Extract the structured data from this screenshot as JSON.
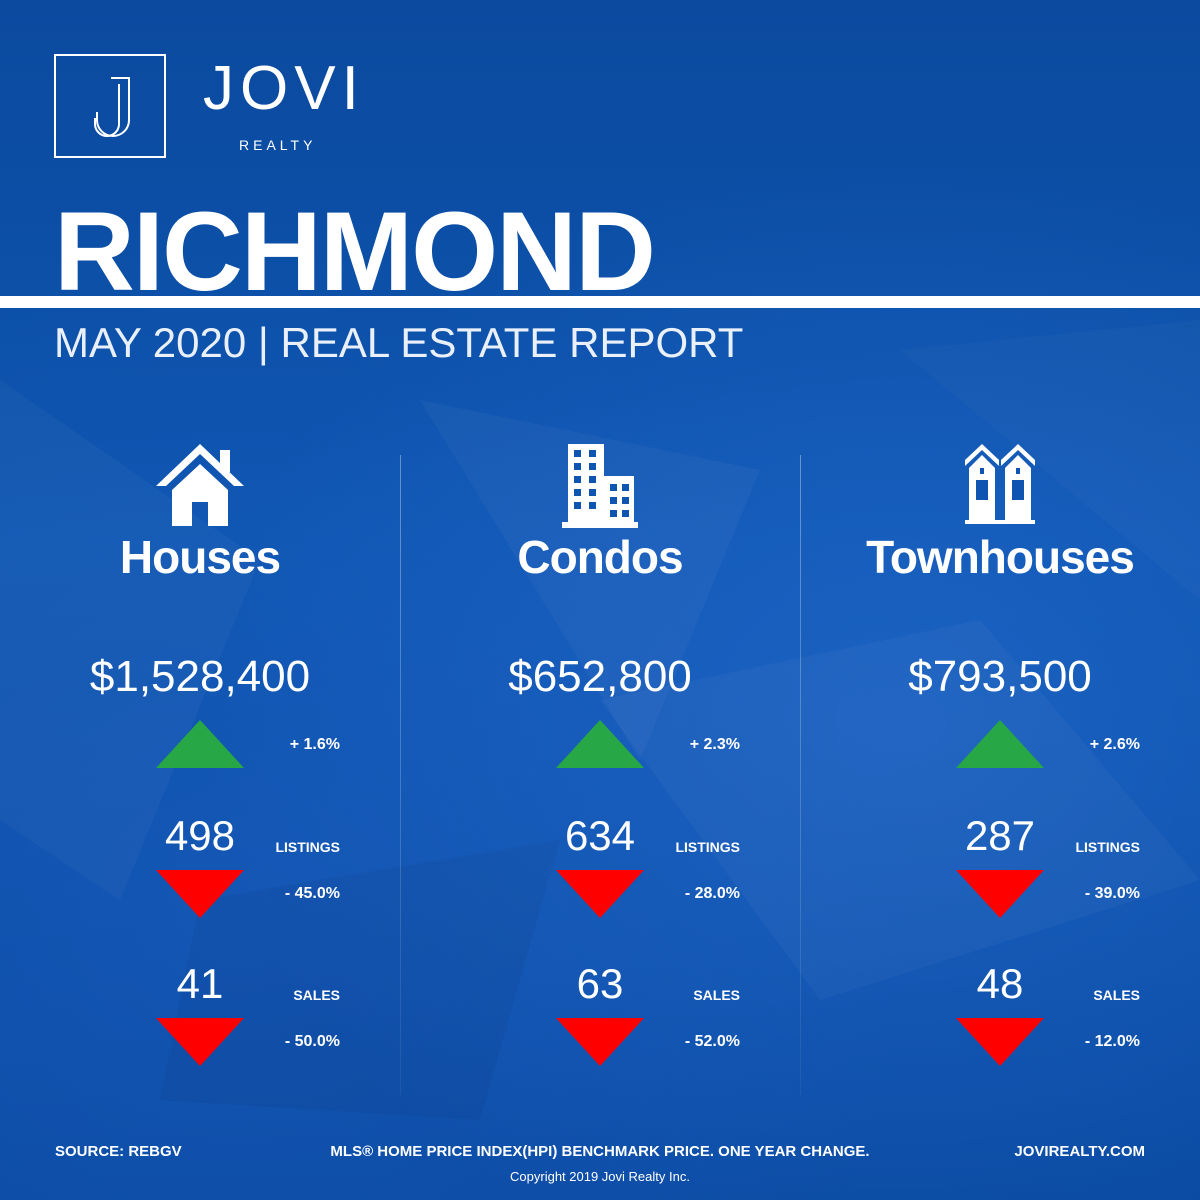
{
  "brand": {
    "name": "JOVI",
    "sub": "REALTY"
  },
  "title": "RICHMOND",
  "subtitle": "MAY 2020 | REAL ESTATE REPORT",
  "colors": {
    "background": "#0d55b0",
    "up": "#27a745",
    "down": "#ff0000"
  },
  "categories": [
    {
      "name": "Houses",
      "icon": "house-icon",
      "price": "$1,528,400",
      "price_change": "+ 1.6%",
      "listings": "498",
      "listings_label": "LISTINGS",
      "listings_change": "- 45.0%",
      "sales": "41",
      "sales_label": "SALES",
      "sales_change": "- 50.0%"
    },
    {
      "name": "Condos",
      "icon": "condo-building-icon",
      "price": "$652,800",
      "price_change": "+ 2.3%",
      "listings": "634",
      "listings_label": "LISTINGS",
      "listings_change": "- 28.0%",
      "sales": "63",
      "sales_label": "SALES",
      "sales_change": "- 52.0%"
    },
    {
      "name": "Townhouses",
      "icon": "townhouse-icon",
      "price": "$793,500",
      "price_change": "+ 2.6%",
      "listings": "287",
      "listings_label": "LISTINGS",
      "listings_change": "- 39.0%",
      "sales": "48",
      "sales_label": "SALES",
      "sales_change": "- 12.0%"
    }
  ],
  "footer": {
    "source": "SOURCE:  REBGV",
    "note": "MLS® HOME PRICE INDEX(HPI) BENCHMARK PRICE. ONE YEAR CHANGE.",
    "website": "JOVIREALTY.COM",
    "copyright": "Copyright 2019 Jovi Realty Inc."
  }
}
